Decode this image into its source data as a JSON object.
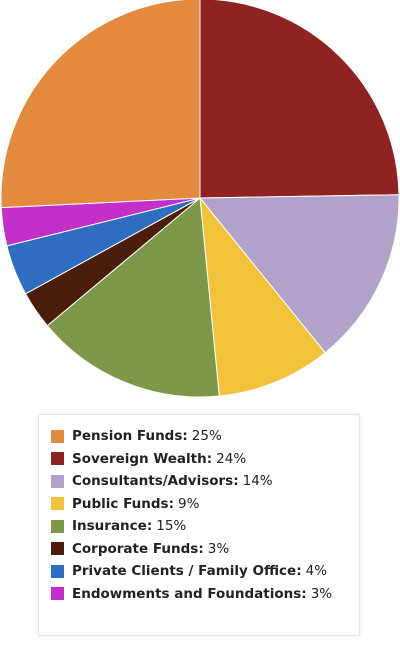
{
  "chart_data": {
    "type": "pie",
    "start_angle_deg": 0,
    "direction": "clockwise",
    "legend_position": "bottom",
    "slices": [
      {
        "label": "Sovereign Wealth",
        "value": 24,
        "display": "24%",
        "color": "#8e2321"
      },
      {
        "label": "Consultants/Advisors",
        "value": 14,
        "display": "14%",
        "color": "#b0a2c8"
      },
      {
        "label": "Public Funds",
        "value": 9,
        "display": "9%",
        "color": "#f2c33a"
      },
      {
        "label": "Insurance",
        "value": 15,
        "display": "15%",
        "color": "#7d9849"
      },
      {
        "label": "Corporate Funds",
        "value": 3,
        "display": "3%",
        "color": "#4a1d0c"
      },
      {
        "label": "Private Clients / Family Office",
        "value": 4,
        "display": "4%",
        "color": "#2e6dbf"
      },
      {
        "label": "Endowments and Foundations",
        "value": 3,
        "display": "3%",
        "color": "#c22fc9"
      },
      {
        "label": "Pension Funds",
        "value": 25,
        "display": "25%",
        "color": "#e38a3f"
      }
    ]
  },
  "legend": {
    "items": [
      {
        "label": "Pension Funds",
        "value": "25%",
        "color": "#e38a3f"
      },
      {
        "label": "Sovereign Wealth",
        "value": "24%",
        "color": "#8e2321"
      },
      {
        "label": "Consultants/Advisors",
        "value": "14%",
        "color": "#b0a2c8"
      },
      {
        "label": "Public Funds",
        "value": "9%",
        "color": "#f2c33a"
      },
      {
        "label": "Insurance",
        "value": "15%",
        "color": "#7d9849"
      },
      {
        "label": "Corporate Funds",
        "value": "3%",
        "color": "#4a1d0c"
      },
      {
        "label": "Private Clients / Family Office",
        "value": "4%",
        "color": "#2e6dbf"
      },
      {
        "label": "Endowments and Foundations",
        "value": "3%",
        "color": "#c22fc9"
      }
    ]
  }
}
